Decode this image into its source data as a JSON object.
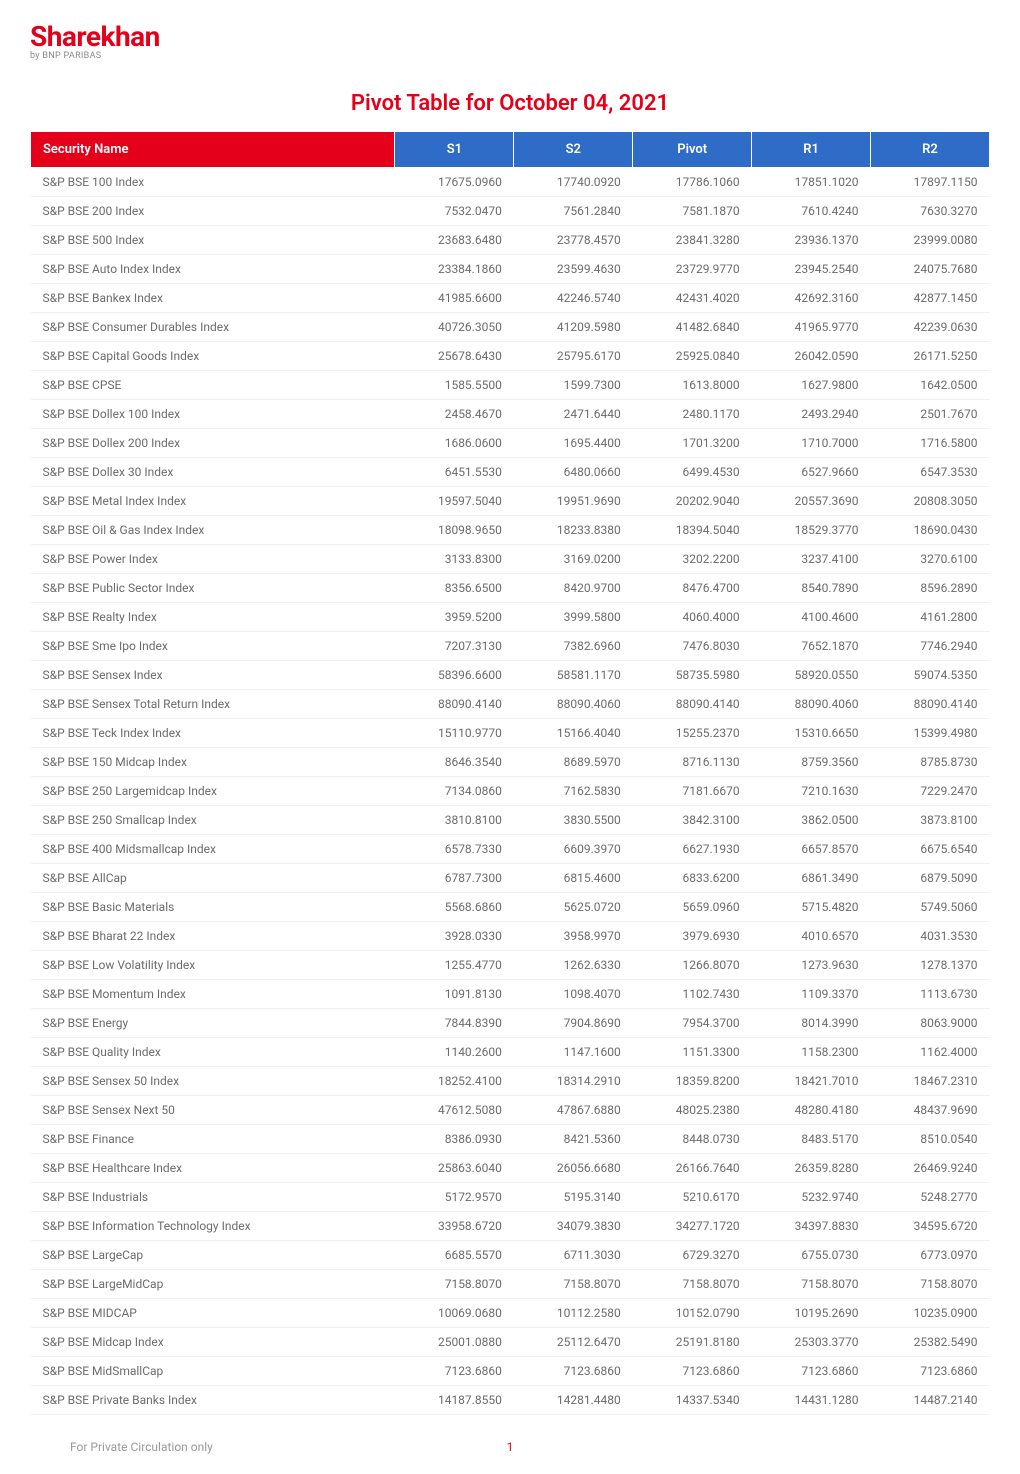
{
  "logo": {
    "name": "Sharekhan",
    "subtitle": "by BNP PARIBAS",
    "color": "#e4001b"
  },
  "title": {
    "text": "Pivot Table for October 04, 2021",
    "color": "#e4001b"
  },
  "table": {
    "header_bg_name": "#e4001b",
    "header_bg_num": "#2e6cc7",
    "columns": [
      "Security Name",
      "S1",
      "S2",
      "Pivot",
      "R1",
      "R2"
    ],
    "rows": [
      [
        "S&P BSE 100 Index",
        "17675.0960",
        "17740.0920",
        "17786.1060",
        "17851.1020",
        "17897.1150"
      ],
      [
        "S&P BSE 200 Index",
        "7532.0470",
        "7561.2840",
        "7581.1870",
        "7610.4240",
        "7630.3270"
      ],
      [
        "S&P BSE 500 Index",
        "23683.6480",
        "23778.4570",
        "23841.3280",
        "23936.1370",
        "23999.0080"
      ],
      [
        "S&P BSE Auto Index Index",
        "23384.1860",
        "23599.4630",
        "23729.9770",
        "23945.2540",
        "24075.7680"
      ],
      [
        "S&P BSE Bankex Index",
        "41985.6600",
        "42246.5740",
        "42431.4020",
        "42692.3160",
        "42877.1450"
      ],
      [
        "S&P BSE Consumer Durables Index",
        "40726.3050",
        "41209.5980",
        "41482.6840",
        "41965.9770",
        "42239.0630"
      ],
      [
        "S&P BSE Capital Goods Index",
        "25678.6430",
        "25795.6170",
        "25925.0840",
        "26042.0590",
        "26171.5250"
      ],
      [
        "S&P BSE CPSE",
        "1585.5500",
        "1599.7300",
        "1613.8000",
        "1627.9800",
        "1642.0500"
      ],
      [
        "S&P BSE Dollex 100 Index",
        "2458.4670",
        "2471.6440",
        "2480.1170",
        "2493.2940",
        "2501.7670"
      ],
      [
        "S&P BSE Dollex 200 Index",
        "1686.0600",
        "1695.4400",
        "1701.3200",
        "1710.7000",
        "1716.5800"
      ],
      [
        "S&P BSE Dollex 30 Index",
        "6451.5530",
        "6480.0660",
        "6499.4530",
        "6527.9660",
        "6547.3530"
      ],
      [
        "S&P BSE Metal Index Index",
        "19597.5040",
        "19951.9690",
        "20202.9040",
        "20557.3690",
        "20808.3050"
      ],
      [
        "S&P BSE Oil & Gas Index Index",
        "18098.9650",
        "18233.8380",
        "18394.5040",
        "18529.3770",
        "18690.0430"
      ],
      [
        "S&P BSE Power Index",
        "3133.8300",
        "3169.0200",
        "3202.2200",
        "3237.4100",
        "3270.6100"
      ],
      [
        "S&P BSE Public Sector Index",
        "8356.6500",
        "8420.9700",
        "8476.4700",
        "8540.7890",
        "8596.2890"
      ],
      [
        "S&P BSE Realty Index",
        "3959.5200",
        "3999.5800",
        "4060.4000",
        "4100.4600",
        "4161.2800"
      ],
      [
        "S&P BSE Sme Ipo Index",
        "7207.3130",
        "7382.6960",
        "7476.8030",
        "7652.1870",
        "7746.2940"
      ],
      [
        "S&P BSE Sensex Index",
        "58396.6600",
        "58581.1170",
        "58735.5980",
        "58920.0550",
        "59074.5350"
      ],
      [
        "S&P BSE Sensex Total Return Index",
        "88090.4140",
        "88090.4060",
        "88090.4140",
        "88090.4060",
        "88090.4140"
      ],
      [
        "S&P BSE Teck Index Index",
        "15110.9770",
        "15166.4040",
        "15255.2370",
        "15310.6650",
        "15399.4980"
      ],
      [
        "S&P BSE 150 Midcap Index",
        "8646.3540",
        "8689.5970",
        "8716.1130",
        "8759.3560",
        "8785.8730"
      ],
      [
        "S&P BSE 250 Largemidcap Index",
        "7134.0860",
        "7162.5830",
        "7181.6670",
        "7210.1630",
        "7229.2470"
      ],
      [
        "S&P BSE 250 Smallcap Index",
        "3810.8100",
        "3830.5500",
        "3842.3100",
        "3862.0500",
        "3873.8100"
      ],
      [
        "S&P BSE 400 Midsmallcap Index",
        "6578.7330",
        "6609.3970",
        "6627.1930",
        "6657.8570",
        "6675.6540"
      ],
      [
        "S&P BSE AllCap",
        "6787.7300",
        "6815.4600",
        "6833.6200",
        "6861.3490",
        "6879.5090"
      ],
      [
        "S&P BSE Basic Materials",
        "5568.6860",
        "5625.0720",
        "5659.0960",
        "5715.4820",
        "5749.5060"
      ],
      [
        "S&P BSE Bharat 22 Index",
        "3928.0330",
        "3958.9970",
        "3979.6930",
        "4010.6570",
        "4031.3530"
      ],
      [
        "S&P BSE Low Volatility Index",
        "1255.4770",
        "1262.6330",
        "1266.8070",
        "1273.9630",
        "1278.1370"
      ],
      [
        "S&P BSE Momentum Index",
        "1091.8130",
        "1098.4070",
        "1102.7430",
        "1109.3370",
        "1113.6730"
      ],
      [
        "S&P BSE Energy",
        "7844.8390",
        "7904.8690",
        "7954.3700",
        "8014.3990",
        "8063.9000"
      ],
      [
        "S&P BSE Quality Index",
        "1140.2600",
        "1147.1600",
        "1151.3300",
        "1158.2300",
        "1162.4000"
      ],
      [
        "S&P BSE Sensex 50 Index",
        "18252.4100",
        "18314.2910",
        "18359.8200",
        "18421.7010",
        "18467.2310"
      ],
      [
        "S&P BSE Sensex Next 50",
        "47612.5080",
        "47867.6880",
        "48025.2380",
        "48280.4180",
        "48437.9690"
      ],
      [
        "S&P BSE Finance",
        "8386.0930",
        "8421.5360",
        "8448.0730",
        "8483.5170",
        "8510.0540"
      ],
      [
        "S&P BSE Healthcare Index",
        "25863.6040",
        "26056.6680",
        "26166.7640",
        "26359.8280",
        "26469.9240"
      ],
      [
        "S&P BSE Industrials",
        "5172.9570",
        "5195.3140",
        "5210.6170",
        "5232.9740",
        "5248.2770"
      ],
      [
        "S&P BSE Information Technology Index",
        "33958.6720",
        "34079.3830",
        "34277.1720",
        "34397.8830",
        "34595.6720"
      ],
      [
        "S&P BSE LargeCap",
        "6685.5570",
        "6711.3030",
        "6729.3270",
        "6755.0730",
        "6773.0970"
      ],
      [
        "S&P BSE LargeMidCap",
        "7158.8070",
        "7158.8070",
        "7158.8070",
        "7158.8070",
        "7158.8070"
      ],
      [
        "S&P BSE MIDCAP",
        "10069.0680",
        "10112.2580",
        "10152.0790",
        "10195.2690",
        "10235.0900"
      ],
      [
        "S&P BSE Midcap Index",
        "25001.0880",
        "25112.6470",
        "25191.8180",
        "25303.3770",
        "25382.5490"
      ],
      [
        "S&P BSE MidSmallCap",
        "7123.6860",
        "7123.6860",
        "7123.6860",
        "7123.6860",
        "7123.6860"
      ],
      [
        "S&P BSE Private Banks Index",
        "14187.8550",
        "14281.4480",
        "14337.5340",
        "14431.1280",
        "14487.2140"
      ]
    ]
  },
  "footer": {
    "text": "For Private Circulation only",
    "page_num": "1",
    "page_num_color": "#e4001b"
  }
}
